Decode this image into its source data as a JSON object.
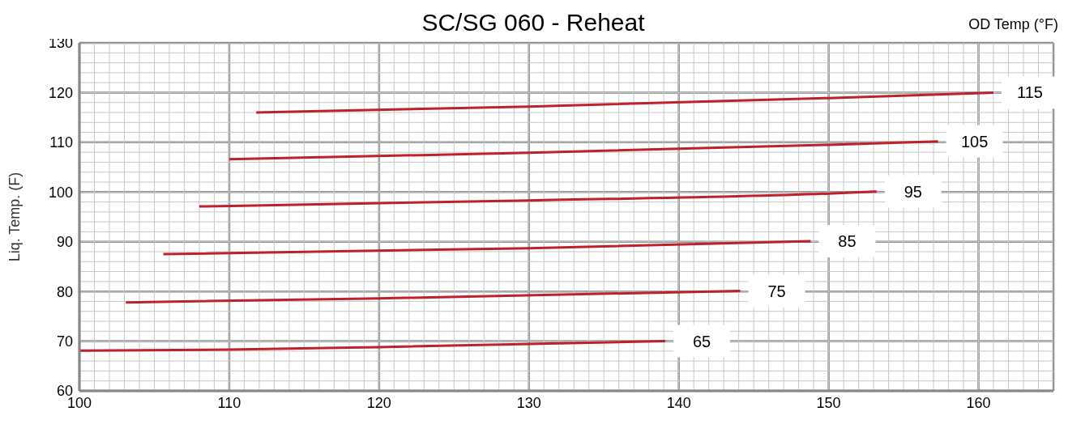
{
  "chart_data": {
    "type": "line",
    "title": "SC/SG 060 - Reheat",
    "ylabel": "Liq. Temp. (F)",
    "legend_title": "OD Temp (°F)",
    "xlim": [
      100,
      165
    ],
    "xticks": [
      100,
      110,
      120,
      130,
      140,
      150,
      160
    ],
    "ylim": [
      60,
      130
    ],
    "yticks": [
      60,
      70,
      80,
      90,
      100,
      110,
      120,
      130
    ],
    "grid": true,
    "marker": "none",
    "line_style": "solid",
    "series": [
      {
        "name": "115",
        "color": "#c0202a",
        "x": [
          111.8,
          130,
          150,
          161
        ],
        "values": [
          116,
          117.2,
          118.9,
          120
        ]
      },
      {
        "name": "105",
        "color": "#c0202a",
        "x": [
          110,
          130,
          150,
          157.3
        ],
        "values": [
          106.6,
          107.9,
          109.5,
          110.2
        ]
      },
      {
        "name": "95",
        "color": "#c0202a",
        "x": [
          108,
          130,
          150,
          153.2
        ],
        "values": [
          97.1,
          98.3,
          99.7,
          100.1
        ]
      },
      {
        "name": "85",
        "color": "#c0202a",
        "x": [
          105.6,
          130,
          148.8
        ],
        "values": [
          87.5,
          88.7,
          90.1
        ]
      },
      {
        "name": "75",
        "color": "#c0202a",
        "x": [
          103.1,
          120,
          144.1
        ],
        "values": [
          77.8,
          78.6,
          80.1
        ]
      },
      {
        "name": "65",
        "color": "#c0202a",
        "x": [
          100,
          110,
          120,
          139.1
        ],
        "values": [
          68.1,
          68.3,
          68.8,
          70
        ]
      }
    ]
  }
}
